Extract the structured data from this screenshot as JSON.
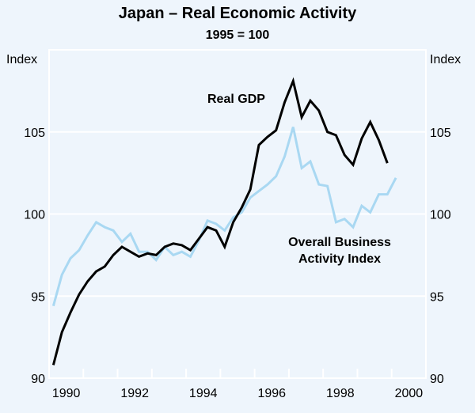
{
  "chart_data": {
    "type": "line",
    "title": "Japan – Real Economic Activity",
    "subtitle": "1995 = 100",
    "ylabel_left": "Index",
    "ylabel_right": "Index",
    "ylim": [
      90,
      110
    ],
    "xlim": [
      1990,
      2001
    ],
    "yticks": [
      90,
      95,
      100,
      105
    ],
    "xtick_labels": [
      "1990",
      "1992",
      "1994",
      "1996",
      "1998",
      "2000"
    ],
    "xtick_label_years": [
      1990,
      1992,
      1994,
      1996,
      1998,
      2000
    ],
    "grid": true,
    "frequency": "quarterly",
    "start": "1990 Q1",
    "series": [
      {
        "name": "Real GDP",
        "label": "Real GDP",
        "color": "#000000",
        "values": [
          90.8,
          92.8,
          94.0,
          95.1,
          95.9,
          96.5,
          96.8,
          97.5,
          98.0,
          97.7,
          97.4,
          97.6,
          97.5,
          98.0,
          98.2,
          98.1,
          97.8,
          98.5,
          99.2,
          99.0,
          98.0,
          99.5,
          100.4,
          101.5,
          104.2,
          104.7,
          105.1,
          106.8,
          108.1,
          105.9,
          106.9,
          106.3,
          105.0,
          104.8,
          103.6,
          103.0,
          104.6,
          105.6,
          104.5,
          103.1
        ]
      },
      {
        "name": "Overall Business Activity Index",
        "label_line1": "Overall Business",
        "label_line2": "Activity Index",
        "color": "#a9d8f2",
        "values": [
          94.4,
          96.3,
          97.3,
          97.8,
          98.7,
          99.5,
          99.2,
          99.0,
          98.3,
          98.8,
          97.7,
          97.7,
          97.2,
          98.0,
          97.5,
          97.7,
          97.4,
          98.4,
          99.6,
          99.4,
          99.0,
          99.8,
          100.1,
          101.0,
          101.4,
          101.8,
          102.3,
          103.5,
          105.3,
          102.8,
          103.2,
          101.8,
          101.7,
          99.5,
          99.7,
          99.2,
          100.5,
          100.1,
          101.2,
          101.2,
          102.2
        ]
      }
    ]
  }
}
